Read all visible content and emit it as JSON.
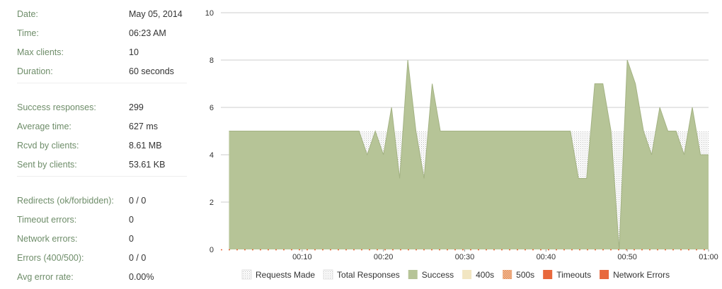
{
  "stats": {
    "groups": [
      {
        "rows": [
          {
            "label": "Date:",
            "value": "May 05, 2014"
          },
          {
            "label": "Time:",
            "value": "06:23 AM"
          },
          {
            "label": "Max clients:",
            "value": "10"
          },
          {
            "label": "Duration:",
            "value": "60 seconds"
          }
        ]
      },
      {
        "rows": [
          {
            "label": "Success responses:",
            "value": "299"
          },
          {
            "label": "Average time:",
            "value": "627 ms"
          },
          {
            "label": "Rcvd by clients:",
            "value": "8.61 MB"
          },
          {
            "label": "Sent by clients:",
            "value": "53.61 KB"
          }
        ]
      },
      {
        "rows": [
          {
            "label": "Redirects (ok/forbidden):",
            "value": "0 / 0"
          },
          {
            "label": "Timeout errors:",
            "value": "0"
          },
          {
            "label": "Network errors:",
            "value": "0"
          },
          {
            "label": "Errors (400/500):",
            "value": "0 / 0"
          },
          {
            "label": "Avg error rate:",
            "value": "0.00%"
          }
        ]
      }
    ]
  },
  "chart_data": {
    "type": "area",
    "ylim": [
      0,
      10
    ],
    "yticks": [
      "0",
      "2",
      "4",
      "6",
      "8",
      "10"
    ],
    "xlim": [
      0,
      60
    ],
    "xticks": [
      {
        "x": 10,
        "label": "00:10"
      },
      {
        "x": 20,
        "label": "00:20"
      },
      {
        "x": 30,
        "label": "00:30"
      },
      {
        "x": 40,
        "label": "00:40"
      },
      {
        "x": 50,
        "label": "00:50"
      },
      {
        "x": 60,
        "label": "01:00"
      }
    ],
    "grid": true,
    "legend_position": "bottom",
    "series": [
      {
        "name": "Requests Made",
        "style": "dotted",
        "color": "#d6d6d6",
        "x": [
          1,
          17,
          18,
          19,
          20,
          21,
          22,
          23,
          24,
          25,
          26,
          27,
          43,
          44,
          45,
          46,
          47,
          48,
          49,
          50,
          51,
          52,
          53,
          54,
          55,
          56,
          57,
          58,
          59,
          60
        ],
        "values": [
          5,
          5,
          5,
          5,
          5,
          5,
          5,
          5,
          5,
          5,
          5,
          5,
          5,
          5,
          5,
          5,
          5,
          5,
          5,
          5,
          5,
          5,
          5,
          5,
          5,
          5,
          5,
          5,
          5,
          5
        ]
      },
      {
        "name": "Total Responses",
        "style": "dotted",
        "color": "#d6d6d6",
        "x": [
          1,
          17,
          18,
          19,
          20,
          21,
          22,
          23,
          24,
          25,
          26,
          27,
          43,
          44,
          45,
          46,
          47,
          48,
          49,
          50,
          51,
          52,
          53,
          54,
          55,
          56,
          57,
          58,
          59,
          60
        ],
        "values": [
          5,
          5,
          5,
          5,
          5,
          5,
          5,
          5,
          5,
          5,
          5,
          5,
          5,
          5,
          5,
          5,
          5,
          5,
          5,
          5,
          5,
          5,
          5,
          5,
          5,
          5,
          5,
          5,
          5,
          5
        ]
      },
      {
        "name": "Success",
        "style": "solid",
        "color": "#b6c497",
        "x": [
          1,
          17,
          18,
          19,
          20,
          21,
          22,
          23,
          24,
          25,
          26,
          27,
          43,
          44,
          45,
          46,
          47,
          48,
          49,
          50,
          51,
          52,
          53,
          54,
          55,
          56,
          57,
          58,
          59,
          60
        ],
        "values": [
          5,
          5,
          4,
          5,
          4,
          6,
          3,
          8,
          5,
          3,
          7,
          5,
          5,
          3,
          3,
          7,
          7,
          5,
          0,
          8,
          7,
          5,
          4,
          6,
          5,
          5,
          4,
          6,
          4,
          4
        ]
      },
      {
        "name": "400s",
        "style": "solid",
        "color": "#f2e6c2",
        "x": [
          1,
          60
        ],
        "values": [
          0,
          0
        ]
      },
      {
        "name": "500s",
        "style": "hatch",
        "color": "#e6a070",
        "x": [
          1,
          60
        ],
        "values": [
          0,
          0
        ]
      },
      {
        "name": "Timeouts",
        "style": "solid",
        "color": "#e8683c",
        "x": [
          1,
          60
        ],
        "values": [
          0,
          0
        ]
      },
      {
        "name": "Network Errors",
        "style": "solid",
        "color": "#e8683c",
        "x": [
          1,
          60
        ],
        "values": [
          0,
          0
        ]
      }
    ]
  }
}
